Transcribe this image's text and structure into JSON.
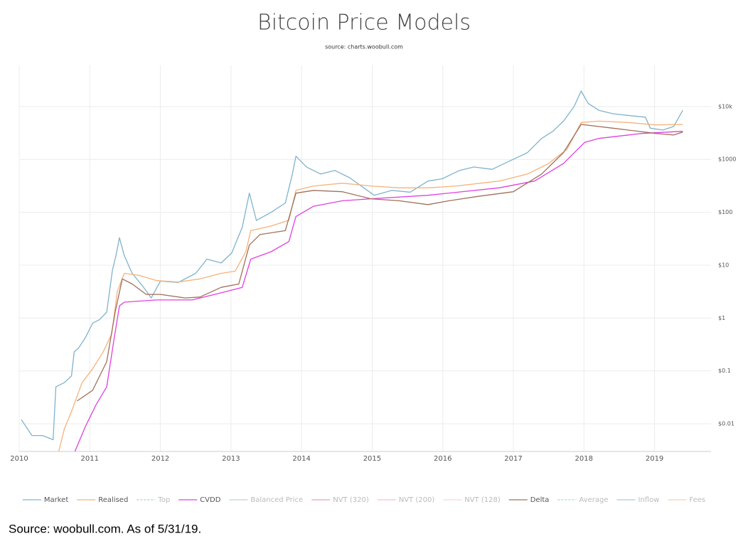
{
  "chart_data": {
    "type": "line",
    "title": "Bitcoin Price Models",
    "subtitle": "source: charts.woobull.com",
    "footnote": "Source: woobull.com. As of 5/31/19.",
    "log_y": true,
    "grid": true,
    "legend": "bottom",
    "xlim": [
      2010,
      2019.8
    ],
    "xticks": [
      2010,
      2011,
      2012,
      2013,
      2014,
      2015,
      2016,
      2017,
      2018,
      2019
    ],
    "ylim": [
      0.003,
      60000
    ],
    "yticks": [
      {
        "value": 0.01,
        "label": "$0.01"
      },
      {
        "value": 0.1,
        "label": "$0.1"
      },
      {
        "value": 1,
        "label": "$1"
      },
      {
        "value": 10,
        "label": "$10"
      },
      {
        "value": 100,
        "label": "$100"
      },
      {
        "value": 1000,
        "label": "$1000"
      },
      {
        "value": 10000,
        "label": "$10k"
      }
    ],
    "series": [
      {
        "name": "Market",
        "color": "#7fb3cc",
        "visible": true,
        "x": [
          2010.03,
          2010.18,
          2010.33,
          2010.48,
          2010.52,
          2010.64,
          2010.74,
          2010.78,
          2010.84,
          2010.94,
          2011.04,
          2011.14,
          2011.24,
          2011.32,
          2011.37,
          2011.42,
          2011.49,
          2011.6,
          2011.75,
          2011.87,
          2012.0,
          2012.25,
          2012.5,
          2012.66,
          2012.86,
          2013.01,
          2013.16,
          2013.26,
          2013.36,
          2013.57,
          2013.77,
          2013.87,
          2013.92,
          2014.07,
          2014.27,
          2014.47,
          2014.68,
          2014.88,
          2015.03,
          2015.28,
          2015.54,
          2015.79,
          2015.99,
          2016.24,
          2016.44,
          2016.7,
          2016.98,
          2017.2,
          2017.4,
          2017.56,
          2017.71,
          2017.86,
          2017.96,
          2018.06,
          2018.21,
          2018.41,
          2018.62,
          2018.87,
          2018.94,
          2019.12,
          2019.27,
          2019.4
        ],
        "values": [
          0.012,
          0.006,
          0.006,
          0.005,
          0.05,
          0.06,
          0.08,
          0.23,
          0.27,
          0.43,
          0.8,
          0.94,
          1.3,
          8,
          15,
          33,
          15,
          7,
          4,
          2.4,
          5,
          4.7,
          7,
          13,
          11,
          17,
          52,
          230,
          70,
          100,
          150,
          530,
          1150,
          720,
          530,
          620,
          450,
          290,
          210,
          260,
          240,
          390,
          430,
          620,
          720,
          650,
          980,
          1350,
          2500,
          3400,
          5300,
          10000,
          19700,
          11500,
          8500,
          7300,
          6800,
          6300,
          3900,
          3600,
          4200,
          8500
        ]
      },
      {
        "name": "Realised",
        "color": "#f5b27a",
        "visible": true,
        "x": [
          2010.56,
          2010.64,
          2010.74,
          2010.89,
          2011.04,
          2011.19,
          2011.31,
          2011.39,
          2011.49,
          2011.7,
          2011.95,
          2012.25,
          2012.56,
          2012.86,
          2013.06,
          2013.21,
          2013.28,
          2013.57,
          2013.82,
          2013.92,
          2014.17,
          2014.58,
          2014.98,
          2015.38,
          2015.79,
          2016.19,
          2016.8,
          2017.2,
          2017.5,
          2017.76,
          2017.96,
          2018.21,
          2018.62,
          2019.02,
          2019.4
        ],
        "values": [
          0.003,
          0.008,
          0.017,
          0.06,
          0.11,
          0.23,
          0.5,
          3.2,
          7,
          6.4,
          5.1,
          4.8,
          5.5,
          7,
          7.7,
          18,
          45,
          55,
          71,
          260,
          315,
          355,
          315,
          290,
          290,
          315,
          390,
          530,
          840,
          1560,
          5000,
          5300,
          5000,
          4500,
          4600
        ]
      },
      {
        "name": "Top",
        "color": "#a8d0dc",
        "visible": false,
        "dash": true
      },
      {
        "name": "CVDD",
        "color": "#e040e0",
        "visible": true,
        "x": [
          2010.79,
          2010.94,
          2011.09,
          2011.24,
          2011.34,
          2011.42,
          2011.49,
          2011.95,
          2012.45,
          2012.86,
          2013.16,
          2013.28,
          2013.57,
          2013.82,
          2013.92,
          2014.17,
          2014.58,
          2014.98,
          2015.79,
          2016.8,
          2017.3,
          2017.71,
          2018.01,
          2018.21,
          2018.82,
          2019.4
        ],
        "values": [
          0.003,
          0.009,
          0.023,
          0.05,
          0.37,
          1.7,
          2.0,
          2.2,
          2.2,
          3,
          3.8,
          13,
          18,
          28,
          83,
          130,
          165,
          180,
          210,
          290,
          390,
          840,
          2100,
          2500,
          3100,
          3400
        ]
      },
      {
        "name": "Balanced Price",
        "color": "#b8d4dc",
        "visible": false
      },
      {
        "name": "NVT (320)",
        "color": "#f0a0a8",
        "visible": false
      },
      {
        "name": "NVT (200)",
        "color": "#f5c0c8",
        "visible": false
      },
      {
        "name": "NVT (128)",
        "color": "#f8d8d8",
        "visible": false
      },
      {
        "name": "Delta",
        "color": "#a0705a",
        "visible": true,
        "x": [
          2010.82,
          2011.04,
          2011.24,
          2011.36,
          2011.46,
          2011.6,
          2011.8,
          2012.0,
          2012.35,
          2012.56,
          2012.86,
          2013.11,
          2013.26,
          2013.41,
          2013.77,
          2013.92,
          2014.17,
          2014.58,
          2014.98,
          2015.38,
          2015.79,
          2016.09,
          2016.5,
          2017.0,
          2017.4,
          2017.71,
          2017.96,
          2018.41,
          2019.02,
          2019.27,
          2019.4
        ],
        "values": [
          0.027,
          0.043,
          0.15,
          1.3,
          5.5,
          4.4,
          2.8,
          2.8,
          2.4,
          2.5,
          3.8,
          4.4,
          24,
          38,
          45,
          230,
          260,
          245,
          180,
          165,
          140,
          165,
          200,
          245,
          530,
          1350,
          4600,
          3900,
          3100,
          2900,
          3300
        ]
      },
      {
        "name": "Average",
        "color": "#a8d8d8",
        "visible": false,
        "dash": true
      },
      {
        "name": "Inflow",
        "color": "#a8cce0",
        "visible": false
      },
      {
        "name": "Fees",
        "color": "#f8d0a8",
        "visible": false
      }
    ]
  }
}
